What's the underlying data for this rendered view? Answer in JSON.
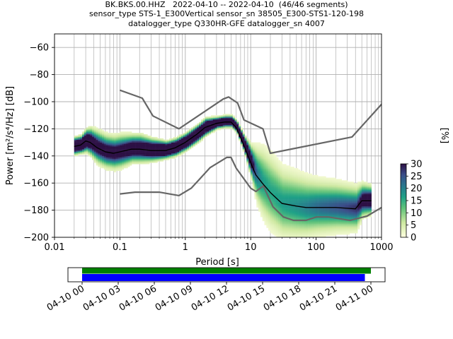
{
  "chart_data": [
    {
      "type": "heatmap",
      "title_lines": [
        "BK.BKS.00.HHZ   2022-04-10 -- 2022-04-10  (46/46 segments)",
        "sensor_type STS-1_E300Vertical sensor_sn 38505_E300-STS1-120-198",
        "datalogger_type Q330HR-GFE datalogger_sn 4007"
      ],
      "xlabel": "Period [s]",
      "ylabel": "Power [m²/s⁴/Hz] [dB]",
      "xscale": "log",
      "xlim": [
        0.01,
        1000
      ],
      "ylim": [
        -200,
        -50
      ],
      "x_ticks": [
        0.01,
        0.1,
        1,
        10,
        100,
        1000
      ],
      "x_tick_labels": [
        "0.01",
        "0.1",
        "1",
        "10",
        "100",
        "1000"
      ],
      "y_ticks": [
        -200,
        -180,
        -160,
        -140,
        -120,
        -100,
        -80,
        -60
      ],
      "y_tick_labels": [
        "−200",
        "−180",
        "−160",
        "−140",
        "−120",
        "−100",
        "−80",
        "−60"
      ],
      "grid": true,
      "colorbar": {
        "label": "[%]",
        "range": [
          0,
          30
        ],
        "ticks": [
          0,
          5,
          10,
          15,
          20,
          25,
          30
        ],
        "tick_labels": [
          "0",
          "5",
          "10",
          "15",
          "20",
          "25",
          "30"
        ]
      },
      "series": [
        {
          "role": "high-noise-model",
          "color": "#666666",
          "x": [
            0.1,
            0.22,
            0.32,
            0.8,
            3.8,
            4.6,
            6.3,
            7.9,
            15.4,
            20,
            354.8,
            10000
          ],
          "y": [
            -91.5,
            -97.4,
            -110.5,
            -120,
            -98,
            -96.5,
            -101,
            -113.5,
            -120,
            -138,
            -126,
            -48.5
          ]
        },
        {
          "role": "low-noise-model",
          "color": "#666666",
          "x": [
            0.1,
            0.17,
            0.4,
            0.8,
            1.24,
            2.4,
            4.3,
            5,
            6,
            10,
            12,
            15.6,
            21.9,
            31.6,
            45,
            70,
            101,
            154,
            328,
            600,
            1000
          ],
          "y": [
            -168,
            -166.7,
            -166.7,
            -169.2,
            -163.7,
            -148.6,
            -141.1,
            -141.1,
            -149,
            -163.8,
            -166.2,
            -162.1,
            -177.5,
            -185,
            -187.5,
            -187.5,
            -185,
            -185,
            -187.5,
            -184.4,
            -178
          ]
        },
        {
          "role": "mode",
          "color": "#000000",
          "x": [
            0.02,
            0.025,
            0.03,
            0.035,
            0.045,
            0.06,
            0.08,
            0.1,
            0.15,
            0.2,
            0.3,
            0.5,
            0.7,
            1,
            1.5,
            2,
            3,
            4,
            5,
            6,
            8,
            10,
            12,
            15,
            20,
            30,
            50,
            70,
            100,
            200,
            400,
            500,
            700
          ],
          "y": [
            -133,
            -132,
            -129,
            -130,
            -134,
            -137,
            -138,
            -137,
            -135,
            -135,
            -136,
            -136,
            -134,
            -130,
            -124,
            -119,
            -116,
            -115,
            -115,
            -119,
            -133,
            -145,
            -154,
            -160,
            -167,
            -175,
            -177,
            -178,
            -178,
            -178,
            -179,
            -173,
            -173
          ]
        }
      ],
      "histogram_mode_x": [
        0.02,
        0.025,
        0.03,
        0.035,
        0.045,
        0.06,
        0.08,
        0.1,
        0.15,
        0.2,
        0.3,
        0.5,
        0.7,
        1,
        1.5,
        2,
        3,
        4,
        5,
        6,
        8,
        10,
        12,
        15,
        20,
        30,
        50,
        70,
        100,
        200,
        400,
        500,
        700
      ],
      "histogram_mode_y": [
        -133,
        -132,
        -129,
        -130,
        -134,
        -137,
        -138,
        -137,
        -135,
        -135,
        -136,
        -136,
        -134,
        -130,
        -124,
        -119,
        -116,
        -115,
        -115,
        -119,
        -133,
        -145,
        -154,
        -160,
        -167,
        -175,
        -177,
        -178,
        -178,
        -178,
        -179,
        -173,
        -173
      ],
      "histogram_spread_db": [
        3,
        3,
        4,
        5,
        6,
        6,
        6,
        6,
        5,
        5,
        4,
        3,
        3,
        3,
        3,
        3,
        2,
        2,
        2,
        2,
        3,
        6,
        10,
        13,
        14,
        13,
        12,
        11,
        10,
        9,
        8,
        6,
        5
      ]
    },
    {
      "type": "timeline",
      "tick_labels": [
        "04-10 00",
        "04-10 03",
        "04-10 06",
        "04-10 09",
        "04-10 12",
        "04-10 15",
        "04-10 18",
        "04-10 21",
        "04-11 00"
      ],
      "bars": [
        {
          "role": "data-coverage",
          "color": "#008000",
          "start": "04-10 00",
          "end": "04-11 00"
        },
        {
          "role": "psd-segments",
          "color": "#0000ff",
          "start": "04-10 00",
          "end": "04-10 23:30"
        }
      ]
    }
  ],
  "colors": {
    "noise_model": "#666666",
    "mode_line": "#000000",
    "grid": "#b0b0b0",
    "coverage_green": "#008000",
    "segments_blue": "#0000ff"
  }
}
